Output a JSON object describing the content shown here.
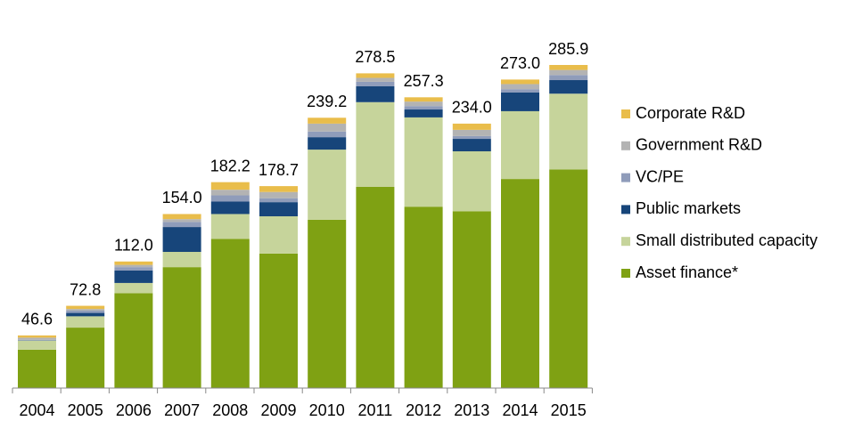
{
  "chart_data": {
    "type": "bar",
    "stacked": true,
    "categories": [
      "2004",
      "2005",
      "2006",
      "2007",
      "2008",
      "2009",
      "2010",
      "2011",
      "2012",
      "2013",
      "2014",
      "2015"
    ],
    "series": [
      {
        "name": "Asset finance*",
        "color": "#7fa113",
        "values": [
          34,
          53.5,
          84,
          107,
          132,
          119,
          149,
          178,
          160.5,
          156.5,
          185,
          193.5
        ]
      },
      {
        "name": "Small distributed capacity",
        "color": "#c6d49b",
        "values": [
          8,
          10,
          9,
          13.5,
          22,
          33,
          62,
          75,
          79,
          53,
          60,
          67
        ]
      },
      {
        "name": "Public markets",
        "color": "#17457a",
        "values": [
          0.3,
          3,
          11,
          22,
          11,
          12.5,
          11,
          14,
          7,
          11,
          16.5,
          12
        ]
      },
      {
        "name": "VC/PE",
        "color": "#8f9cba",
        "values": [
          0.4,
          2,
          3,
          4.5,
          5.5,
          3.5,
          5,
          4,
          3,
          2.5,
          3,
          4.5
        ]
      },
      {
        "name": "Government R&D",
        "color": "#b3b3b3",
        "values": [
          1.9,
          1.5,
          2,
          2.5,
          5,
          5.5,
          7,
          3.5,
          4,
          5.5,
          4.5,
          4.5
        ]
      },
      {
        "name": "Corporate R&D",
        "color": "#e9bd4b",
        "values": [
          2,
          2.8,
          3,
          4.5,
          6.7,
          5.2,
          5.2,
          4,
          3.8,
          5.5,
          4,
          4.4
        ]
      }
    ],
    "totals": [
      46.6,
      72.8,
      112.0,
      154.0,
      182.2,
      178.7,
      239.2,
      278.5,
      257.3,
      234.0,
      273.0,
      285.9
    ],
    "totals_labels": [
      "46.6",
      "72.8",
      "112.0",
      "154.0",
      "182.2",
      "178.7",
      "239.2",
      "278.5",
      "257.3",
      "234.0",
      "273.0",
      "285.9"
    ],
    "legend": "right"
  }
}
